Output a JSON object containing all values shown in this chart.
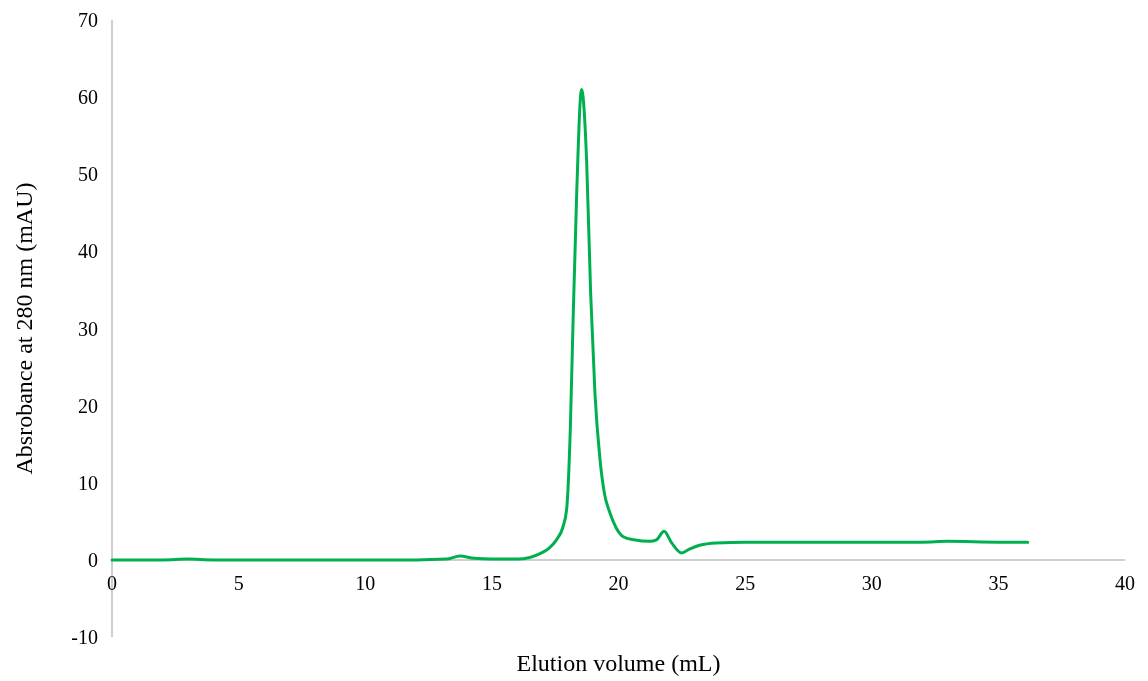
{
  "chart_data": {
    "type": "line",
    "xlabel": "Elution  volume  (mL)",
    "ylabel": "Absrobance at 280 nm (mAU)",
    "xlim": [
      0,
      40
    ],
    "xticks": [
      0,
      5,
      10,
      15,
      20,
      25,
      30,
      35,
      40
    ],
    "ylim": [
      -10,
      70
    ],
    "yticks": [
      -10,
      0,
      10,
      20,
      30,
      40,
      50,
      60,
      70
    ],
    "grid": false,
    "marker": "none",
    "line_style": "solid",
    "series": [
      {
        "color": "#00b050",
        "x": [
          0,
          2,
          3,
          4,
          6,
          8,
          10,
          12,
          13.2,
          13.74,
          14.3,
          15,
          16,
          16.5,
          16.9,
          17.25,
          17.55,
          17.8,
          17.95,
          18.1,
          18.2,
          18.35,
          18.54,
          18.74,
          18.9,
          19.07,
          19.27,
          19.45,
          19.66,
          19.9,
          20.19,
          20.6,
          21.24,
          21.5,
          21.8,
          22.1,
          22.49,
          22.8,
          23.2,
          23.87,
          25,
          28,
          30,
          32,
          33,
          35,
          36.16
        ],
        "values": [
          0,
          0,
          0.1,
          0,
          0,
          0,
          0,
          0,
          0.1,
          0.5,
          0.2,
          0.1,
          0.1,
          0.3,
          0.8,
          1.5,
          2.6,
          4.2,
          6.5,
          17.3,
          30.2,
          47.6,
          61,
          51.9,
          34.6,
          21.6,
          13,
          8.5,
          6.1,
          4.2,
          3,
          2.6,
          2.4,
          2.6,
          3.7,
          2.2,
          0.9,
          1.4,
          1.9,
          2.2,
          2.3,
          2.3,
          2.3,
          2.3,
          2.4,
          2.3,
          2.3
        ]
      }
    ]
  }
}
